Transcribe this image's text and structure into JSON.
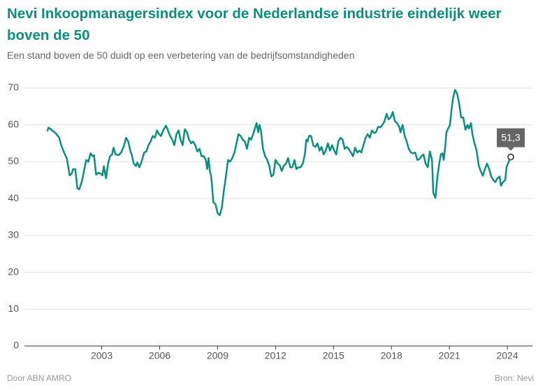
{
  "chart_data": {
    "type": "line",
    "title": "Nevi Inkoopmanagersindex voor de Nederlandse industrie eindelijk weer boven de 50",
    "subtitle": "Een stand boven de 50 duidt op een verbetering van de bedrijfsomstandigheden",
    "source": "Bron: Nevi",
    "credit": "Door ABN AMRO",
    "color": "#0a8f7d",
    "grid": true,
    "xlim": [
      1999,
      2025.3
    ],
    "xticks": [
      2003,
      2006,
      2009,
      2012,
      2015,
      2018,
      2021,
      2024
    ],
    "ylim": [
      0,
      70
    ],
    "yticks": [
      0,
      10,
      20,
      30,
      40,
      50,
      60,
      70
    ],
    "annotation": {
      "x": 2024.18,
      "value": 51.3,
      "label": "51,3"
    },
    "x": [
      2000.18,
      2000.25,
      2000.43,
      2000.61,
      2000.8,
      2000.9,
      2001.05,
      2001.19,
      2001.34,
      2001.45,
      2001.52,
      2001.63,
      2001.74,
      2001.84,
      2001.99,
      2002.1,
      2002.2,
      2002.31,
      2002.42,
      2002.53,
      2002.6,
      2002.71,
      2002.82,
      2002.93,
      2003.04,
      2003.11,
      2003.22,
      2003.33,
      2003.43,
      2003.54,
      2003.61,
      2003.72,
      2003.87,
      2004.01,
      2004.16,
      2004.26,
      2004.37,
      2004.48,
      2004.55,
      2004.66,
      2004.77,
      2004.84,
      2004.95,
      2005.06,
      2005.2,
      2005.31,
      2005.42,
      2005.53,
      2005.64,
      2005.75,
      2005.86,
      2005.96,
      2006.07,
      2006.18,
      2006.33,
      2006.43,
      2006.54,
      2006.65,
      2006.76,
      2006.87,
      2006.98,
      2007.08,
      2007.19,
      2007.3,
      2007.41,
      2007.52,
      2007.63,
      2007.73,
      2007.84,
      2007.95,
      2008.06,
      2008.17,
      2008.28,
      2008.39,
      2008.46,
      2008.53,
      2008.6,
      2008.67,
      2008.78,
      2008.89,
      2009.0,
      2009.11,
      2009.22,
      2009.32,
      2009.43,
      2009.54,
      2009.65,
      2009.76,
      2009.87,
      2009.98,
      2010.08,
      2010.19,
      2010.3,
      2010.41,
      2010.52,
      2010.63,
      2010.73,
      2010.84,
      2011.02,
      2011.1,
      2011.17,
      2011.24,
      2011.35,
      2011.46,
      2011.57,
      2011.67,
      2011.78,
      2011.89,
      2012.0,
      2012.11,
      2012.22,
      2012.32,
      2012.43,
      2012.54,
      2012.65,
      2012.76,
      2012.87,
      2012.98,
      2013.08,
      2013.19,
      2013.3,
      2013.41,
      2013.52,
      2013.59,
      2013.66,
      2013.73,
      2013.84,
      2013.95,
      2014.06,
      2014.17,
      2014.28,
      2014.38,
      2014.49,
      2014.6,
      2014.71,
      2014.82,
      2014.93,
      2015.04,
      2015.14,
      2015.25,
      2015.36,
      2015.47,
      2015.58,
      2015.69,
      2015.79,
      2015.9,
      2016.01,
      2016.12,
      2016.23,
      2016.34,
      2016.44,
      2016.55,
      2016.66,
      2016.77,
      2016.88,
      2016.99,
      2017.1,
      2017.2,
      2017.31,
      2017.42,
      2017.53,
      2017.64,
      2017.75,
      2017.85,
      2017.96,
      2018.07,
      2018.18,
      2018.29,
      2018.4,
      2018.47,
      2018.58,
      2018.69,
      2018.79,
      2018.9,
      2019.01,
      2019.12,
      2019.23,
      2019.34,
      2019.45,
      2019.55,
      2019.66,
      2019.77,
      2019.88,
      2019.99,
      2020.1,
      2020.17,
      2020.28,
      2020.38,
      2020.49,
      2020.56,
      2020.64,
      2020.71,
      2020.78,
      2020.85,
      2020.93,
      2021.03,
      2021.11,
      2021.18,
      2021.29,
      2021.4,
      2021.5,
      2021.61,
      2021.72,
      2021.83,
      2021.94,
      2022.01,
      2022.12,
      2022.19,
      2022.3,
      2022.41,
      2022.52,
      2022.62,
      2022.73,
      2022.84,
      2022.95,
      2023.06,
      2023.17,
      2023.28,
      2023.38,
      2023.49,
      2023.6,
      2023.67,
      2023.78,
      2023.89,
      2023.96,
      2024.07,
      2024.18
    ],
    "values": [
      58.3,
      59.3,
      58.5,
      57.8,
      56.5,
      54.5,
      52.5,
      51,
      46.3,
      46.8,
      48,
      48,
      42.8,
      42.5,
      45,
      48,
      50.5,
      50,
      52.3,
      51.5,
      51.8,
      46.5,
      47,
      46.8,
      46.3,
      48.8,
      45.5,
      49.5,
      51.5,
      52,
      53.8,
      52,
      51.8,
      52.5,
      54.5,
      56.5,
      55.5,
      53,
      52,
      49.5,
      48.8,
      49.8,
      48.5,
      50,
      52.5,
      52.8,
      54.5,
      55.5,
      57,
      56.5,
      58.5,
      57.5,
      57,
      58.5,
      59.8,
      58.5,
      57,
      56,
      54.5,
      57.5,
      58.5,
      56,
      54.5,
      58.8,
      58,
      56,
      55,
      55.5,
      54.5,
      52.8,
      53.5,
      51.5,
      51.5,
      50.5,
      48,
      51,
      47.5,
      46,
      39,
      38.5,
      36,
      35.5,
      37.5,
      42,
      46,
      50.5,
      50,
      51,
      52.5,
      55,
      57.5,
      57,
      56,
      55.5,
      53.5,
      56.5,
      56,
      57.5,
      60.5,
      58,
      60,
      58.5,
      53.5,
      51.5,
      50.5,
      49,
      46,
      46.5,
      50.5,
      49.5,
      49,
      47.5,
      49,
      49.5,
      51,
      48.5,
      48.5,
      50.5,
      48,
      48.5,
      48.5,
      49.5,
      52,
      56,
      55.5,
      57,
      57,
      54.5,
      54,
      55,
      53,
      54,
      52,
      53,
      55,
      53,
      54.5,
      53,
      52,
      55.5,
      56.5,
      56,
      53.5,
      54,
      53.5,
      52.5,
      51.5,
      53.8,
      52.5,
      53,
      52.5,
      54.5,
      56.5,
      57.5,
      56.5,
      58.5,
      57.8,
      58,
      59.5,
      59.3,
      60,
      61,
      63,
      61.5,
      62,
      63.5,
      61,
      60.5,
      59.5,
      58,
      60,
      57,
      55.5,
      53.5,
      52.5,
      52.3,
      52.5,
      50.5,
      50.7,
      51.5,
      52,
      49.5,
      48.5,
      52.8,
      50.5,
      41.5,
      40.2,
      46,
      50,
      52,
      52.3,
      50.5,
      54,
      58,
      59,
      60,
      64,
      67,
      69.5,
      68.5,
      66,
      62,
      62,
      58.7,
      60,
      59,
      60.5,
      57.5,
      55,
      53,
      49,
      47.5,
      46.2,
      48,
      49.5,
      48,
      46,
      45,
      44.5,
      45.5,
      46,
      43.5,
      44.5,
      45,
      48.5,
      50,
      51.3
    ]
  }
}
